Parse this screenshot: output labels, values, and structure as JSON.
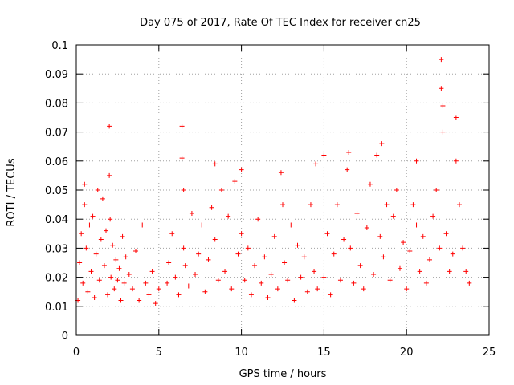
{
  "chart_data": {
    "type": "scatter",
    "title": "Day 075 of 2017, Rate Of TEC Index for receiver cn25",
    "xlabel": "GPS time / hours",
    "ylabel": "ROTI / TECUs",
    "xlim": [
      0,
      25
    ],
    "ylim": [
      0,
      0.1
    ],
    "x_ticks": [
      0,
      5,
      10,
      15,
      20,
      25
    ],
    "y_ticks": [
      0,
      0.01,
      0.02,
      0.03,
      0.04,
      0.05,
      0.06,
      0.07,
      0.08,
      0.09,
      0.1
    ],
    "x_tick_labels": [
      "0",
      "5",
      "10",
      "15",
      "20",
      "25"
    ],
    "y_tick_labels": [
      "0",
      "0.01",
      "0.02",
      "0.03",
      "0.04",
      "0.05",
      "0.06",
      "0.07",
      "0.08",
      "0.09",
      "0.1"
    ],
    "grid": true,
    "marker": "+",
    "color": "#ff0000",
    "series": [
      {
        "name": "ROTI",
        "x": [
          0.1,
          0.2,
          0.3,
          0.4,
          0.5,
          0.5,
          0.6,
          0.7,
          0.8,
          0.9,
          1.0,
          1.1,
          1.2,
          1.3,
          1.4,
          1.5,
          1.6,
          1.7,
          1.8,
          1.9,
          2.0,
          2.0,
          2.05,
          2.1,
          2.2,
          2.3,
          2.4,
          2.5,
          2.6,
          2.7,
          2.8,
          2.9,
          3.0,
          3.2,
          3.4,
          3.6,
          3.8,
          4.0,
          4.2,
          4.4,
          4.6,
          4.8,
          5.0,
          5.5,
          5.6,
          5.8,
          6.0,
          6.2,
          6.4,
          6.4,
          6.5,
          6.5,
          6.6,
          6.8,
          7.0,
          7.2,
          7.4,
          7.6,
          7.8,
          8.0,
          8.2,
          8.4,
          8.4,
          8.6,
          8.8,
          9.0,
          9.2,
          9.4,
          9.6,
          9.8,
          10.0,
          10.0,
          10.2,
          10.4,
          10.6,
          10.8,
          11.0,
          11.2,
          11.4,
          11.6,
          11.8,
          12.0,
          12.2,
          12.4,
          12.5,
          12.6,
          12.8,
          13.0,
          13.2,
          13.4,
          13.6,
          13.8,
          14.0,
          14.2,
          14.4,
          14.5,
          14.6,
          15.0,
          15.0,
          15.2,
          15.4,
          15.6,
          15.8,
          16.0,
          16.2,
          16.4,
          16.5,
          16.6,
          16.8,
          17.0,
          17.2,
          17.4,
          17.6,
          17.8,
          18.0,
          18.2,
          18.4,
          18.5,
          18.6,
          18.8,
          19.0,
          19.2,
          19.4,
          19.6,
          19.8,
          20.0,
          20.2,
          20.4,
          20.6,
          20.6,
          20.8,
          21.0,
          21.2,
          21.4,
          21.6,
          21.8,
          22.0,
          22.1,
          22.1,
          22.2,
          22.2,
          22.4,
          22.6,
          22.8,
          23.0,
          23.0,
          23.2,
          23.4,
          23.6,
          23.8
        ],
        "y": [
          0.012,
          0.025,
          0.035,
          0.018,
          0.045,
          0.052,
          0.03,
          0.015,
          0.038,
          0.022,
          0.041,
          0.013,
          0.028,
          0.05,
          0.019,
          0.033,
          0.047,
          0.024,
          0.036,
          0.014,
          0.072,
          0.055,
          0.04,
          0.02,
          0.031,
          0.016,
          0.026,
          0.019,
          0.023,
          0.012,
          0.034,
          0.018,
          0.027,
          0.021,
          0.016,
          0.029,
          0.012,
          0.038,
          0.018,
          0.014,
          0.022,
          0.011,
          0.016,
          0.018,
          0.025,
          0.035,
          0.02,
          0.014,
          0.072,
          0.061,
          0.05,
          0.03,
          0.024,
          0.017,
          0.042,
          0.021,
          0.028,
          0.038,
          0.015,
          0.026,
          0.044,
          0.059,
          0.033,
          0.019,
          0.05,
          0.022,
          0.041,
          0.016,
          0.053,
          0.028,
          0.057,
          0.035,
          0.019,
          0.03,
          0.014,
          0.024,
          0.04,
          0.018,
          0.027,
          0.013,
          0.021,
          0.034,
          0.016,
          0.056,
          0.045,
          0.025,
          0.019,
          0.038,
          0.012,
          0.031,
          0.02,
          0.027,
          0.015,
          0.045,
          0.022,
          0.059,
          0.016,
          0.062,
          0.02,
          0.035,
          0.014,
          0.028,
          0.045,
          0.019,
          0.033,
          0.057,
          0.063,
          0.03,
          0.018,
          0.042,
          0.024,
          0.016,
          0.037,
          0.052,
          0.021,
          0.062,
          0.034,
          0.066,
          0.027,
          0.045,
          0.019,
          0.041,
          0.05,
          0.023,
          0.032,
          0.016,
          0.029,
          0.045,
          0.06,
          0.038,
          0.022,
          0.034,
          0.018,
          0.026,
          0.041,
          0.05,
          0.03,
          0.095,
          0.085,
          0.079,
          0.07,
          0.035,
          0.022,
          0.028,
          0.075,
          0.06,
          0.045,
          0.03,
          0.022,
          0.018
        ]
      }
    ]
  }
}
